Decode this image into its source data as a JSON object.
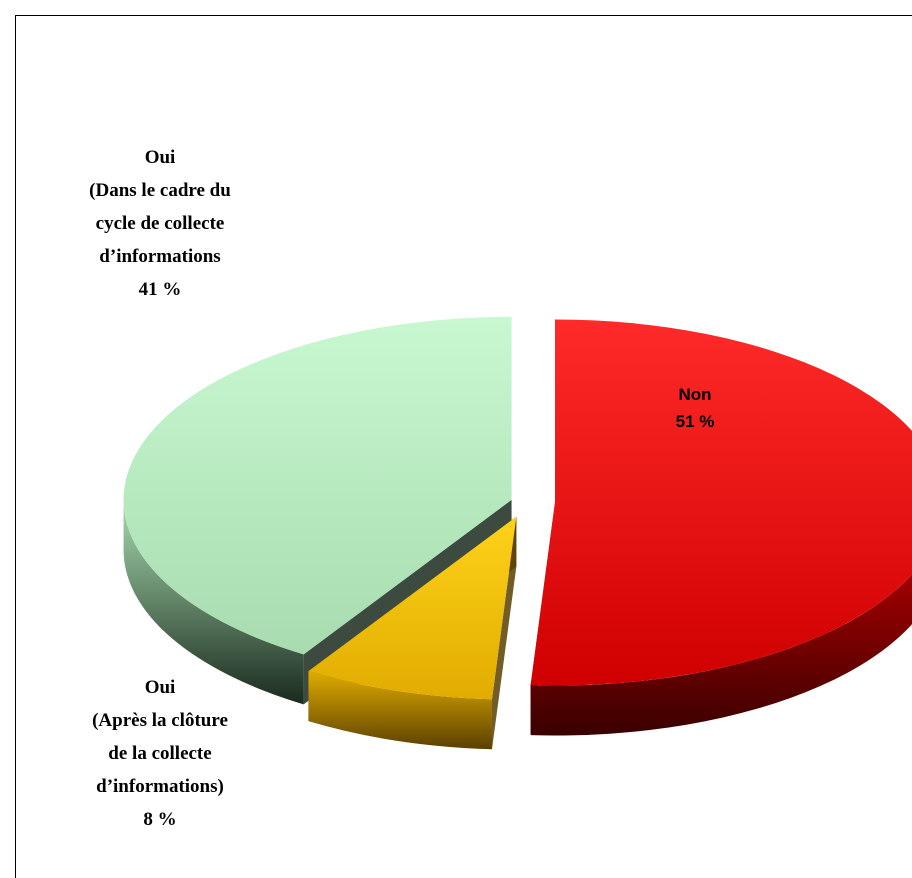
{
  "chart_data": {
    "type": "pie",
    "style": "3d-exploded",
    "slices": [
      {
        "label_lines": [
          "Non"
        ],
        "value": 51,
        "value_text": "51 %",
        "color": "#d00000",
        "color_light": "#ff2a2a",
        "color_dark": "#3a0000"
      },
      {
        "label_lines": [
          "Oui",
          "(Après la clôture",
          "de la collecte",
          "d’informations)"
        ],
        "value": 8,
        "value_text": "8 %",
        "color": "#e0ac00",
        "color_light": "#ffd21a",
        "color_dark": "#5a4000"
      },
      {
        "label_lines": [
          "Oui",
          "(Dans le cadre du",
          "cycle de collecte",
          "d’informations"
        ],
        "value": 41,
        "value_text": "41 %",
        "color": "#a8dcb0",
        "color_light": "#c8f8d0",
        "color_dark": "#1a2a1e"
      }
    ],
    "legend": "none"
  }
}
